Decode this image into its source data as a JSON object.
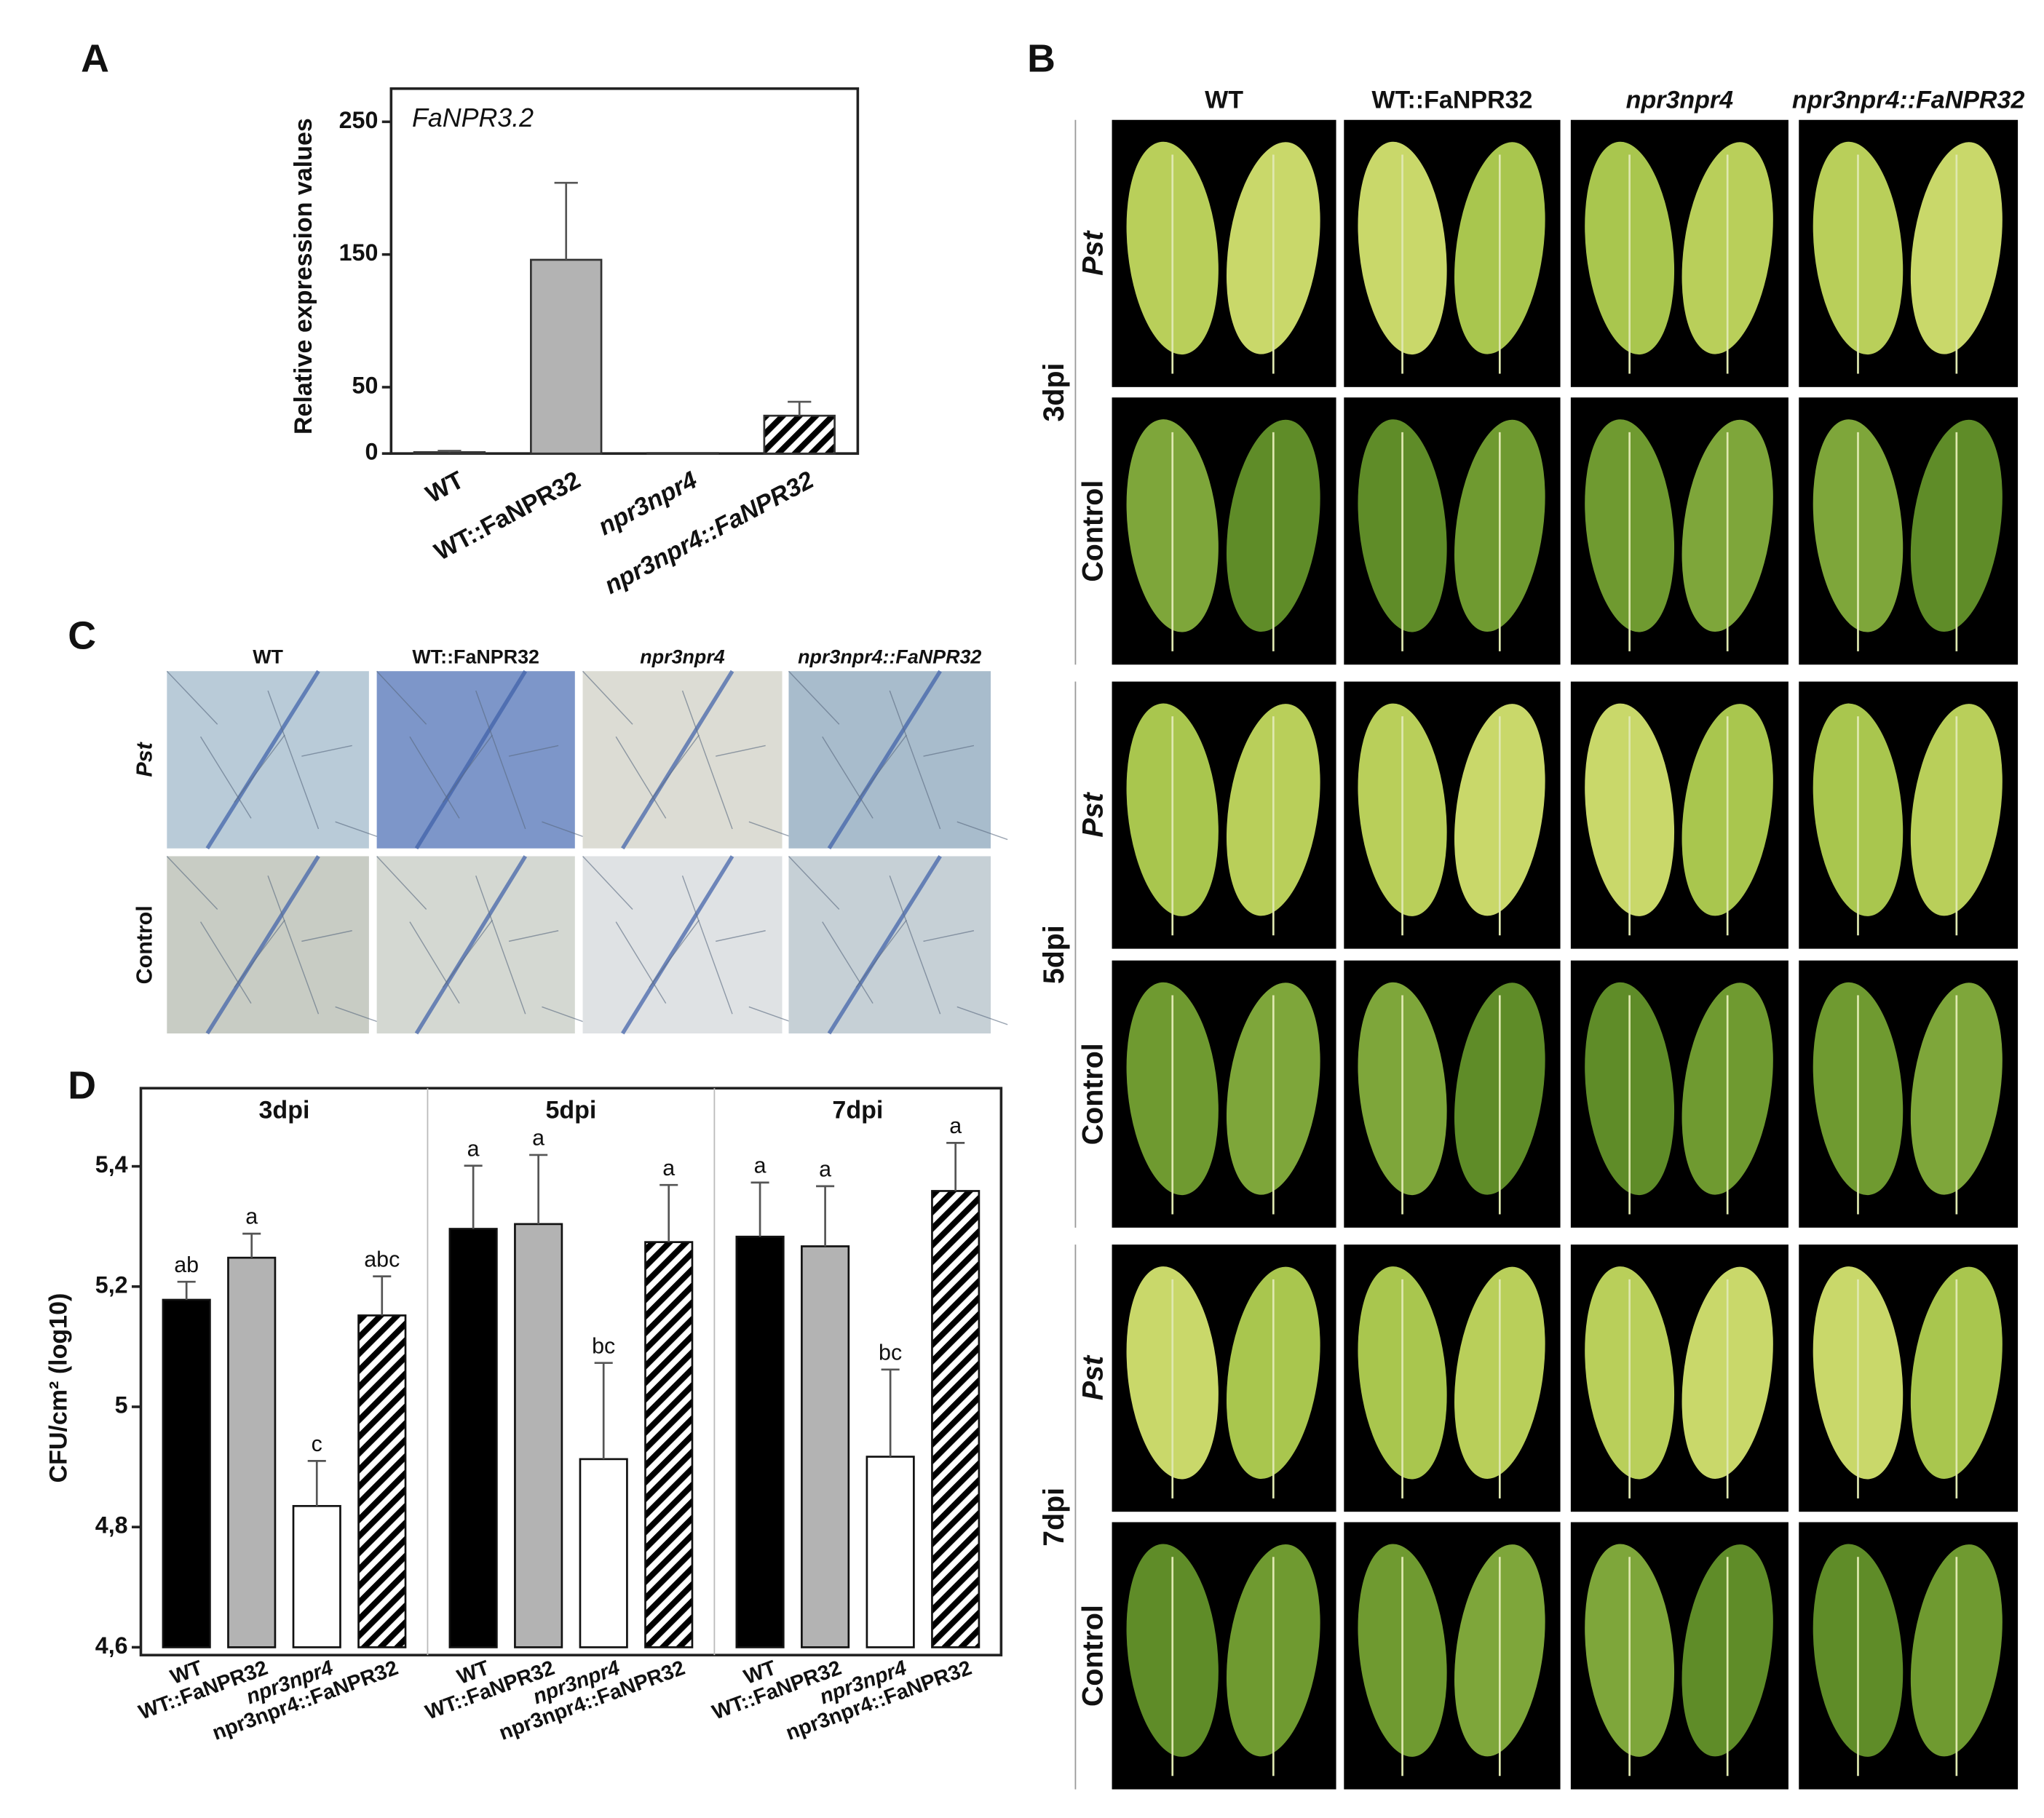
{
  "panel_labels": [
    "A",
    "B",
    "C",
    "D"
  ],
  "chart_data": [
    {
      "type": "bar",
      "ylabel": "Relative expression values",
      "annotation": "FaNPR3.2",
      "categories": [
        "WT",
        "WT::FaNPR32",
        "npr3npr4",
        "npr3npr4::FaNPR32"
      ],
      "values": [
        1,
        146,
        0.3,
        28.5
      ],
      "errors": [
        1,
        58,
        0,
        10.5
      ],
      "colors": [
        "#b3b3b3",
        "#b3b3b3",
        "#b3b3b3",
        "#000000"
      ],
      "patterns": [
        "solid",
        "solid",
        "solid",
        "hatch"
      ],
      "ylim": [
        0,
        275
      ],
      "yticks": [
        0,
        50,
        150,
        250
      ]
    },
    {
      "type": "grouped_bar",
      "ylabel": "CFU/cm² (log10)",
      "groups": [
        "3dpi",
        "5dpi",
        "7dpi"
      ],
      "categories": [
        "WT",
        "WT::FaNPR32",
        "npr3npr4",
        "npr3npr4::FaNPR32"
      ],
      "colors": [
        "#000000",
        "#b3b3b3",
        "#ffffff",
        "#000000"
      ],
      "patterns": [
        "solid",
        "solid",
        "solid",
        "hatch"
      ],
      "series": [
        {
          "name": "3dpi",
          "values": [
            5.178,
            5.248,
            4.835,
            5.152
          ],
          "errors": [
            0.03,
            0.04,
            0.075,
            0.065
          ],
          "letters": [
            "ab",
            "a",
            "c",
            "abc"
          ]
        },
        {
          "name": "5dpi",
          "values": [
            5.296,
            5.304,
            4.913,
            5.274
          ],
          "errors": [
            0.105,
            0.115,
            0.16,
            0.095
          ],
          "letters": [
            "a",
            "a",
            "bc",
            "a"
          ]
        },
        {
          "name": "7dpi",
          "values": [
            5.283,
            5.267,
            4.917,
            5.359
          ],
          "errors": [
            0.09,
            0.1,
            0.145,
            0.08
          ],
          "letters": [
            "a",
            "a",
            "bc",
            "a"
          ]
        }
      ],
      "ylim": [
        4.6,
        5.53
      ],
      "yticks": [
        {
          "value": 4.6,
          "label": "4,6"
        },
        {
          "value": 4.8,
          "label": "4,8"
        },
        5,
        {
          "value": 5.2,
          "label": "5,2"
        },
        {
          "value": 5.4,
          "label": "5,4"
        }
      ]
    }
  ],
  "panel_b": {
    "columns": [
      "WT",
      "WT::FaNPR32",
      "npr3npr4",
      "npr3npr4::FaNPR32"
    ],
    "days": [
      "3dpi",
      "5dpi",
      "7dpi"
    ],
    "treatments": [
      "Pst",
      "Control"
    ]
  },
  "panel_c": {
    "columns": [
      "WT",
      "WT::FaNPR32",
      "npr3npr4",
      "npr3npr4::FaNPR32"
    ],
    "rows": [
      "Pst",
      "Control"
    ]
  }
}
